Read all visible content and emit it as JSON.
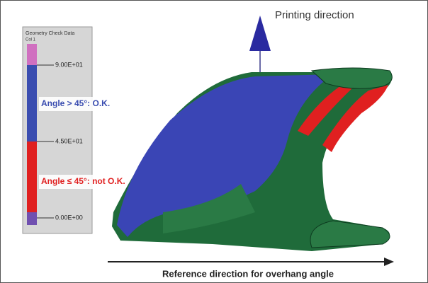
{
  "figure": {
    "printing_direction": "Printing direction",
    "legend": {
      "title": "Geometry Check Data",
      "column": "Col 1",
      "ticks": [
        "9.00E+01",
        "4.50E+01",
        "0.00E+00"
      ],
      "ok_label": "Angle > 45°: O.K.",
      "not_ok_label": "Angle ≤ 45°: not O.K."
    },
    "reference_direction": "Reference direction for overhang angle"
  }
}
